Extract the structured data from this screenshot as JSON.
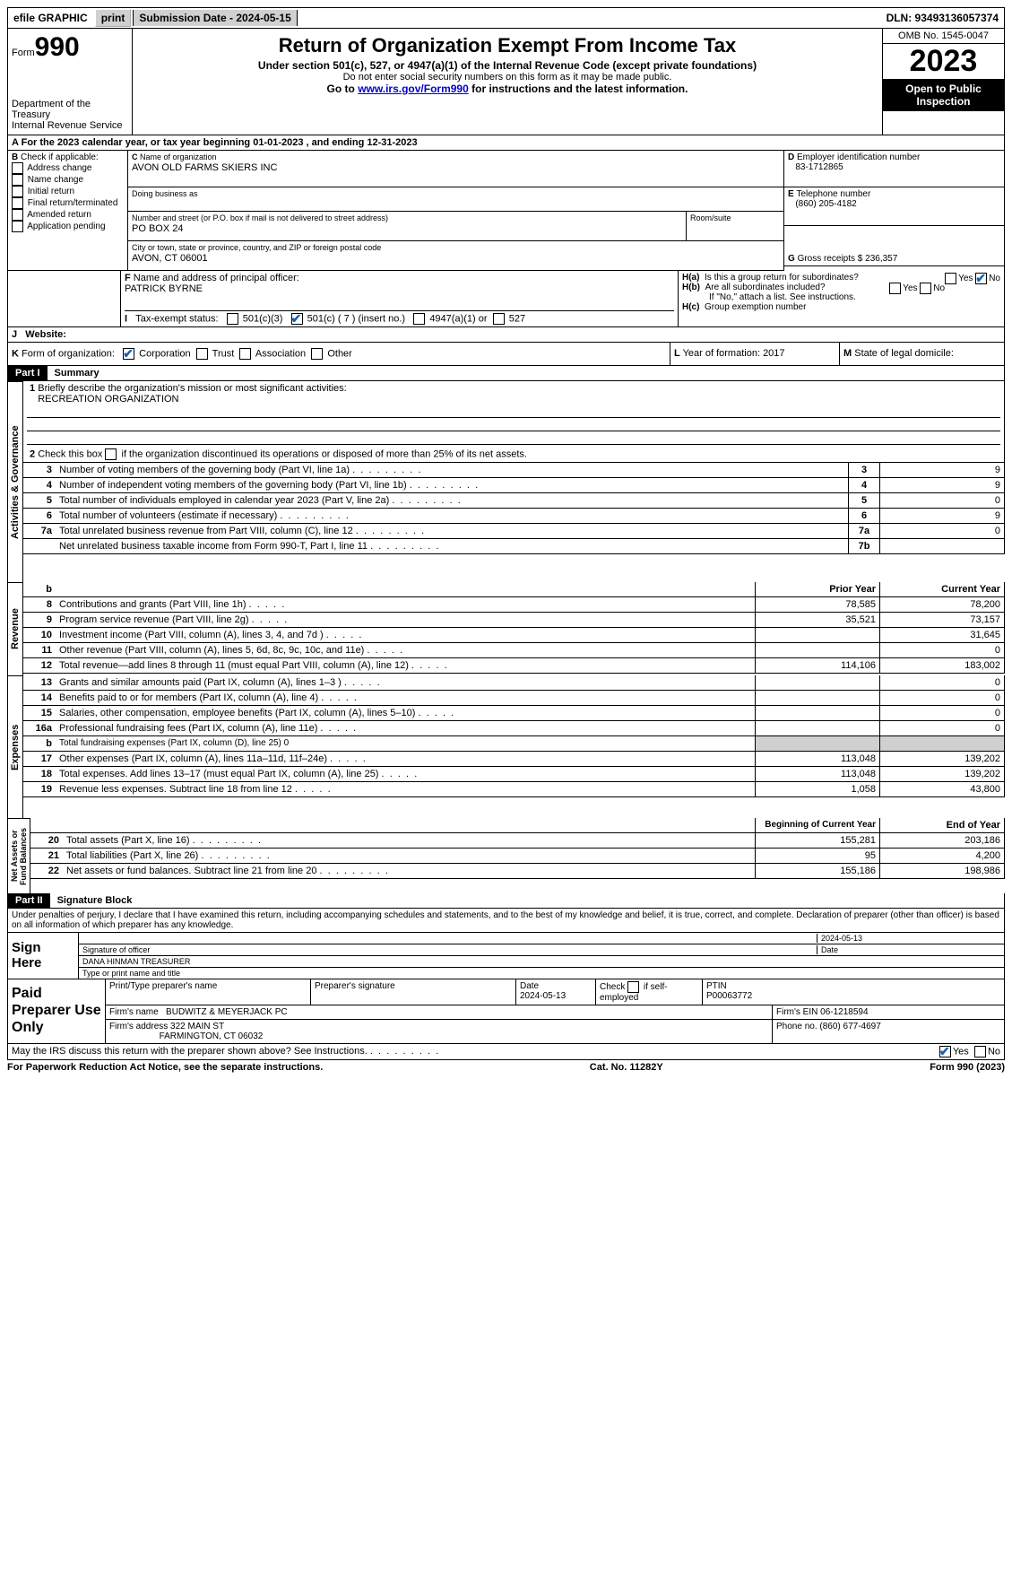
{
  "topbar": {
    "efile": "efile GRAPHIC",
    "print": "print",
    "submission": "Submission Date - 2024-05-15",
    "dln": "DLN: 93493136057374"
  },
  "header": {
    "form_label": "Form",
    "form_num": "990",
    "dept": "Department of the Treasury",
    "irs": "Internal Revenue Service",
    "title": "Return of Organization Exempt From Income Tax",
    "sub1": "Under section 501(c), 527, or 4947(a)(1) of the Internal Revenue Code (except private foundations)",
    "sub2": "Do not enter social security numbers on this form as it may be made public.",
    "sub3_pre": "Go to ",
    "sub3_link": "www.irs.gov/Form990",
    "sub3_post": " for instructions and the latest information.",
    "omb": "OMB No. 1545-0047",
    "year": "2023",
    "inspect": "Open to Public Inspection"
  },
  "A": {
    "text": "For the 2023 calendar year, or tax year beginning 01-01-2023   , and ending 12-31-2023"
  },
  "B": {
    "label": "Check if applicable:",
    "opts": [
      "Address change",
      "Name change",
      "Initial return",
      "Final return/terminated",
      "Amended return",
      "Application pending"
    ]
  },
  "C": {
    "name_lbl": "Name of organization",
    "name": "AVON OLD FARMS SKIERS INC",
    "dba_lbl": "Doing business as",
    "street_lbl": "Number and street (or P.O. box if mail is not delivered to street address)",
    "street": "PO BOX 24",
    "room_lbl": "Room/suite",
    "city_lbl": "City or town, state or province, country, and ZIP or foreign postal code",
    "city": "AVON, CT  06001"
  },
  "D": {
    "lbl": "Employer identification number",
    "val": "83-1712865"
  },
  "E": {
    "lbl": "Telephone number",
    "val": "(860) 205-4182"
  },
  "G": {
    "lbl": "Gross receipts $",
    "val": "236,357"
  },
  "F": {
    "lbl": "Name and address of principal officer:",
    "val": "PATRICK BYRNE"
  },
  "H": {
    "a": "Is this a group return for subordinates?",
    "b": "Are all subordinates included?",
    "b_note": "If \"No,\" attach a list. See instructions.",
    "c": "Group exemption number",
    "yes": "Yes",
    "no": "No"
  },
  "I": {
    "lbl": "Tax-exempt status:",
    "o1": "501(c)(3)",
    "o2": "501(c) ( 7 ) (insert no.)",
    "o3": "4947(a)(1) or",
    "o4": "527"
  },
  "J": {
    "lbl": "Website:"
  },
  "K": {
    "lbl": "Form of organization:",
    "o1": "Corporation",
    "o2": "Trust",
    "o3": "Association",
    "o4": "Other"
  },
  "L": {
    "lbl": "Year of formation:",
    "val": "2017"
  },
  "M": {
    "lbl": "State of legal domicile:"
  },
  "part1": {
    "num": "Part I",
    "title": "Summary"
  },
  "summary": {
    "q1": "Briefly describe the organization's mission or most significant activities:",
    "q1v": "RECREATION ORGANIZATION",
    "q2": "Check this box       if the organization discontinued its operations or disposed of more than 25% of its net assets.",
    "lines_gov": [
      {
        "n": "3",
        "d": "Number of voting members of the governing body (Part VI, line 1a)",
        "b": "3",
        "v": "9"
      },
      {
        "n": "4",
        "d": "Number of independent voting members of the governing body (Part VI, line 1b)",
        "b": "4",
        "v": "9"
      },
      {
        "n": "5",
        "d": "Total number of individuals employed in calendar year 2023 (Part V, line 2a)",
        "b": "5",
        "v": "0"
      },
      {
        "n": "6",
        "d": "Total number of volunteers (estimate if necessary)",
        "b": "6",
        "v": "9"
      },
      {
        "n": "7a",
        "d": "Total unrelated business revenue from Part VIII, column (C), line 12",
        "b": "7a",
        "v": "0"
      },
      {
        "n": "",
        "d": "Net unrelated business taxable income from Form 990-T, Part I, line 11",
        "b": "7b",
        "v": ""
      }
    ],
    "col_prior": "Prior Year",
    "col_current": "Current Year",
    "rev": [
      {
        "n": "8",
        "d": "Contributions and grants (Part VIII, line 1h)",
        "p": "78,585",
        "c": "78,200"
      },
      {
        "n": "9",
        "d": "Program service revenue (Part VIII, line 2g)",
        "p": "35,521",
        "c": "73,157"
      },
      {
        "n": "10",
        "d": "Investment income (Part VIII, column (A), lines 3, 4, and 7d )",
        "p": "",
        "c": "31,645"
      },
      {
        "n": "11",
        "d": "Other revenue (Part VIII, column (A), lines 5, 6d, 8c, 9c, 10c, and 11e)",
        "p": "",
        "c": "0"
      },
      {
        "n": "12",
        "d": "Total revenue—add lines 8 through 11 (must equal Part VIII, column (A), line 12)",
        "p": "114,106",
        "c": "183,002"
      }
    ],
    "exp": [
      {
        "n": "13",
        "d": "Grants and similar amounts paid (Part IX, column (A), lines 1–3 )",
        "p": "",
        "c": "0"
      },
      {
        "n": "14",
        "d": "Benefits paid to or for members (Part IX, column (A), line 4)",
        "p": "",
        "c": "0"
      },
      {
        "n": "15",
        "d": "Salaries, other compensation, employee benefits (Part IX, column (A), lines 5–10)",
        "p": "",
        "c": "0"
      },
      {
        "n": "16a",
        "d": "Professional fundraising fees (Part IX, column (A), line 11e)",
        "p": "",
        "c": "0"
      },
      {
        "n": "b",
        "d": "Total fundraising expenses (Part IX, column (D), line 25) 0",
        "p": "SHADE",
        "c": "SHADE"
      },
      {
        "n": "17",
        "d": "Other expenses (Part IX, column (A), lines 11a–11d, 11f–24e)",
        "p": "113,048",
        "c": "139,202"
      },
      {
        "n": "18",
        "d": "Total expenses. Add lines 13–17 (must equal Part IX, column (A), line 25)",
        "p": "113,048",
        "c": "139,202"
      },
      {
        "n": "19",
        "d": "Revenue less expenses. Subtract line 18 from line 12",
        "p": "1,058",
        "c": "43,800"
      }
    ],
    "col_begin": "Beginning of Current Year",
    "col_end": "End of Year",
    "net": [
      {
        "n": "20",
        "d": "Total assets (Part X, line 16)",
        "p": "155,281",
        "c": "203,186"
      },
      {
        "n": "21",
        "d": "Total liabilities (Part X, line 26)",
        "p": "95",
        "c": "4,200"
      },
      {
        "n": "22",
        "d": "Net assets or fund balances. Subtract line 21 from line 20",
        "p": "155,186",
        "c": "198,986"
      }
    ]
  },
  "vlabels": {
    "gov": "Activities & Governance",
    "rev": "Revenue",
    "exp": "Expenses",
    "net": "Net Assets or Fund Balances"
  },
  "part2": {
    "num": "Part II",
    "title": "Signature Block"
  },
  "sig": {
    "decl": "Under penalties of perjury, I declare that I have examined this return, including accompanying schedules and statements, and to the best of my knowledge and belief, it is true, correct, and complete. Declaration of preparer (other than officer) is based on all information of which preparer has any knowledge.",
    "here": "Sign Here",
    "date": "2024-05-13",
    "sig_lbl": "Signature of officer",
    "date_lbl": "Date",
    "name": "DANA HINMAN TREASURER",
    "name_lbl": "Type or print name and title"
  },
  "prep": {
    "lbl": "Paid Preparer Use Only",
    "h1": "Print/Type preparer's name",
    "h2": "Preparer's signature",
    "h3": "Date",
    "h3v": "2024-05-13",
    "h4": "Check       if self-employed",
    "h5": "PTIN",
    "h5v": "P00063772",
    "firm_lbl": "Firm's name",
    "firm": "BUDWITZ & MEYERJACK PC",
    "ein_lbl": "Firm's EIN",
    "ein": "06-1218594",
    "addr_lbl": "Firm's address",
    "addr1": "322 MAIN ST",
    "addr2": "FARMINGTON, CT  06032",
    "phone_lbl": "Phone no.",
    "phone": "(860) 677-4697",
    "discuss": "May the IRS discuss this return with the preparer shown above? See Instructions.",
    "yes": "Yes",
    "no": "No"
  },
  "footer": {
    "l": "For Paperwork Reduction Act Notice, see the separate instructions.",
    "m": "Cat. No. 11282Y",
    "r": "Form 990 (2023)"
  }
}
